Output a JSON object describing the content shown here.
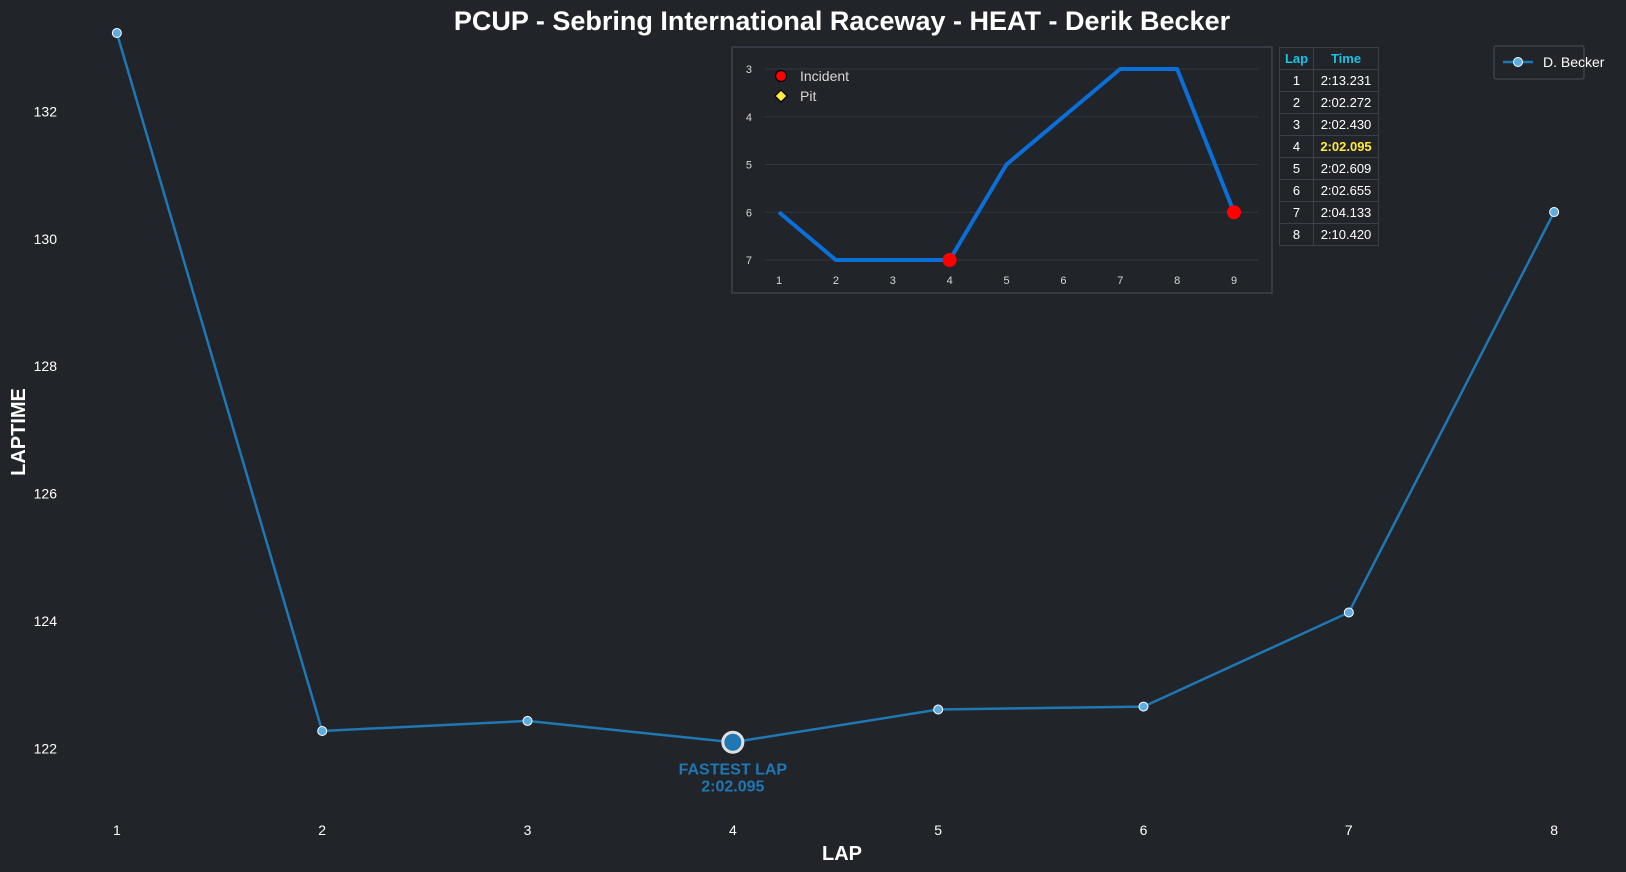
{
  "title": "PCUP - Sebring International Raceway - HEAT - Derik Becker",
  "chart_data": [
    {
      "type": "line",
      "xlabel": "LAP",
      "ylabel": "LAPTIME",
      "x": [
        1,
        2,
        3,
        4,
        5,
        6,
        7,
        8
      ],
      "series": [
        {
          "name": "D. Becker",
          "values": [
            133.231,
            122.272,
            122.43,
            122.095,
            122.609,
            122.655,
            124.133,
            130.42
          ],
          "color": "#1f77b4"
        }
      ],
      "xticks": [
        "1",
        "2",
        "3",
        "4",
        "5",
        "6",
        "7",
        "8"
      ],
      "yticks": [
        "122",
        "124",
        "126",
        "128",
        "130",
        "132"
      ],
      "ylim": [
        121.0,
        133.2
      ],
      "xlim": [
        0.65,
        8.35
      ],
      "grid": false,
      "legend": "top-right",
      "annotation": {
        "x": 4,
        "y": 122.095,
        "line1": "FASTEST LAP",
        "line2": "2:02.095"
      }
    },
    {
      "type": "line",
      "title": "",
      "x": [
        1,
        2,
        3,
        4,
        5,
        6,
        7,
        8,
        9
      ],
      "series": [
        {
          "name": "",
          "values": [
            6,
            7,
            7,
            7,
            5,
            4,
            3,
            3,
            6
          ],
          "color": "#0a6fd8"
        }
      ],
      "xticks": [
        "1",
        "2",
        "3",
        "4",
        "5",
        "6",
        "7",
        "8",
        "9"
      ],
      "yticks": [
        "3",
        "4",
        "5",
        "6",
        "7"
      ],
      "ylim": [
        7.2,
        2.7
      ],
      "y_inverted": true,
      "grid": true,
      "legend": "top-left",
      "legend_items": [
        {
          "label": "Incident",
          "color": "#ff0000",
          "marker": "circle"
        },
        {
          "label": "Pit",
          "color": "#ffeb3b",
          "marker": "diamond"
        }
      ],
      "incidents": [
        {
          "x": 4,
          "y": 7
        },
        {
          "x": 9,
          "y": 6
        }
      ]
    }
  ],
  "lap_table": {
    "headers": [
      "Lap",
      "Time"
    ],
    "rows": [
      [
        "1",
        "2:13.231"
      ],
      [
        "2",
        "2:02.272"
      ],
      [
        "3",
        "2:02.430"
      ],
      [
        "4",
        "2:02.095"
      ],
      [
        "5",
        "2:02.609"
      ],
      [
        "6",
        "2:02.655"
      ],
      [
        "7",
        "2:04.133"
      ],
      [
        "8",
        "2:10.420"
      ]
    ],
    "best_row": 3
  },
  "colors": {
    "background": "#212429",
    "main_line": "#1f77b4",
    "marker_fill": "#5dade2",
    "inset_line": "#0a6fd8",
    "incident": "#ff0000",
    "pit": "#ffeb3b",
    "table_header": "#18c3e6"
  }
}
